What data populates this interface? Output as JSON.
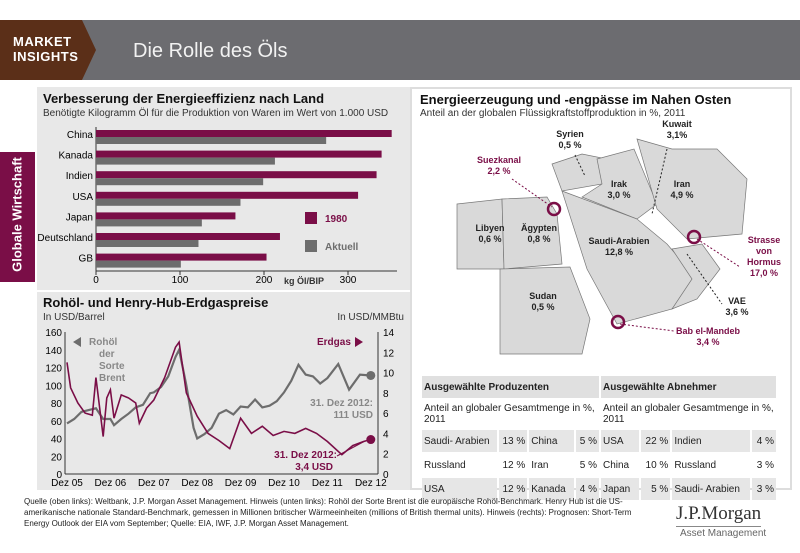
{
  "header": {
    "tag_line1": "MARKET",
    "tag_line2": "INSIGHTS",
    "title": "Die Rolle des Öls"
  },
  "sidebar_tab": "Globale Wirtschaft",
  "colors": {
    "maroon": "#7a0e47",
    "gray": "#6d6d6d",
    "header": "#6c6c70",
    "brown": "#5b2f18"
  },
  "chart_data": [
    {
      "type": "bar",
      "title": "Verbesserung der Energieeffizienz nach Land",
      "subtitle": "Benötigte Kilogramm Öl für die Produktion von Waren im Wert von 1.000 USD",
      "categories": [
        "China",
        "Kanada",
        "Indien",
        "USA",
        "Japan",
        "Deutschland",
        "GB"
      ],
      "series": [
        {
          "name": "1980",
          "color": "#7a0e47",
          "values": [
            352,
            340,
            334,
            312,
            166,
            219,
            203
          ]
        },
        {
          "name": "Aktuell",
          "color": "#6d6d6d",
          "values": [
            274,
            213,
            199,
            172,
            126,
            122,
            101
          ]
        }
      ],
      "xlabel": "kg Öl/BIP",
      "xlim": [
        0,
        350
      ],
      "xticks": [
        "0",
        "100",
        "200",
        "300"
      ],
      "legend": "right"
    },
    {
      "type": "line",
      "title": "Rohöl- und Henry-Hub-Erdgaspreise",
      "ylabel_left": "In USD/Barrel",
      "ylabel_right": "In USD/MMBtu",
      "ylim_left": [
        0,
        160
      ],
      "ylim_right": [
        0,
        14
      ],
      "yticks_left": [
        "0",
        "20",
        "40",
        "60",
        "80",
        "100",
        "120",
        "140",
        "160"
      ],
      "yticks_right": [
        "0",
        "2",
        "4",
        "6",
        "8",
        "10",
        "12",
        "14"
      ],
      "xticks": [
        "Dez 05",
        "Dez 06",
        "Dez 07",
        "Dez 08",
        "Dez 09",
        "Dez 10",
        "Dez 11",
        "Dez 12"
      ],
      "series": [
        {
          "name": "Rohöl der Sorte Brent",
          "axis": "left",
          "color": "#6d6d6d",
          "x": [
            "Dez 05",
            "Feb 06",
            "Apr 06",
            "Jun 06",
            "Aug 06",
            "Okt 06",
            "Dez 06",
            "Jan 07",
            "Mär 07",
            "Mai 07",
            "Jul 07",
            "Sep 07",
            "Nov 07",
            "Dez 07",
            "Feb 08",
            "Apr 08",
            "Jun 08",
            "Jul 08",
            "Sep 08",
            "Nov 08",
            "Dez 08",
            "Feb 09",
            "Apr 09",
            "Jun 09",
            "Aug 09",
            "Okt 09",
            "Dez 09",
            "Feb 10",
            "Apr 10",
            "Jun 10",
            "Aug 10",
            "Okt 10",
            "Dez 10",
            "Feb 11",
            "Apr 11",
            "Jun 11",
            "Aug 11",
            "Okt 11",
            "Dez 11",
            "Mär 12",
            "Jun 12",
            "Sep 12",
            "Dez 12"
          ],
          "values": [
            57,
            62,
            70,
            72,
            74,
            62,
            62,
            55,
            62,
            68,
            75,
            78,
            91,
            92,
            98,
            110,
            132,
            140,
            100,
            52,
            40,
            45,
            52,
            68,
            72,
            67,
            76,
            75,
            84,
            75,
            77,
            82,
            92,
            105,
            123,
            112,
            110,
            102,
            108,
            124,
            95,
            112,
            111
          ]
        },
        {
          "name": "Erdgas",
          "axis": "right",
          "color": "#7a0e47",
          "x": [
            "Dez 05",
            "Jan 06",
            "Mär 06",
            "Mai 06",
            "Jul 06",
            "Aug 06",
            "Okt 06",
            "Nov 06",
            "Dez 06",
            "Jan 07",
            "Mär 07",
            "Mai 07",
            "Jul 07",
            "Aug 07",
            "Okt 07",
            "Dez 07",
            "Mär 08",
            "Jun 08",
            "Jul 08",
            "Sep 08",
            "Dez 08",
            "Mär 09",
            "Jun 09",
            "Sep 09",
            "Dez 09",
            "Mär 10",
            "Jun 10",
            "Sep 10",
            "Dez 10",
            "Mär 11",
            "Jun 11",
            "Sep 11",
            "Dez 11",
            "Apr 12",
            "Jul 12",
            "Okt 12",
            "Dez 12"
          ],
          "values": [
            11,
            8.5,
            7,
            6,
            5.8,
            9.5,
            3.7,
            7.5,
            8.3,
            5.5,
            7.8,
            7.5,
            7,
            5,
            6.5,
            7.3,
            9.5,
            12.5,
            13,
            8,
            5.7,
            4,
            3.3,
            2.5,
            5.5,
            4,
            4.7,
            3.8,
            4.2,
            4,
            4.5,
            4,
            3.2,
            1.9,
            2.8,
            3.2,
            3.4
          ]
        }
      ],
      "annotations": {
        "brent_label": [
          "Rohöl",
          "der",
          "Sorte",
          "Brent"
        ],
        "gas_label": "Erdgas",
        "brent_end": [
          "31. Dez 2012:",
          "111 USD"
        ],
        "gas_end": [
          "31. Dez 2012:",
          "3,4 USD"
        ]
      }
    }
  ],
  "map": {
    "title": "Energieerzeugung und -engpässe im Nahen Osten",
    "subtitle": "Anteil an der globalen Flüssigkraftstoffproduktion in %, 2011",
    "countries": [
      {
        "name": "Syrien",
        "value": "0,5 %"
      },
      {
        "name": "Kuwait",
        "value": "3,1%"
      },
      {
        "name": "Irak",
        "value": "3,0 %"
      },
      {
        "name": "Iran",
        "value": "4,9 %"
      },
      {
        "name": "Libyen",
        "value": "0,6 %"
      },
      {
        "name": "Ägypten",
        "value": "0,8 %"
      },
      {
        "name": "Saudi-Arabien",
        "value": "12,8 %"
      },
      {
        "name": "Sudan",
        "value": "0,5 %"
      },
      {
        "name": "VAE",
        "value": "3,6 %"
      }
    ],
    "chokepoints": [
      {
        "name": "Suezkanal",
        "value": "2,2 %"
      },
      {
        "name": "Strasse von Hormus",
        "value": "17,0 %"
      },
      {
        "name": "Bab el-Mandeb",
        "value": "3,4 %"
      }
    ]
  },
  "tables": {
    "producers": {
      "header": "Ausgewählte Produzenten",
      "sub": "Anteil an globaler Gesamtmenge in %, 2011",
      "rows": [
        [
          "Saudi- Arabien",
          "13 %",
          "China",
          "5 %"
        ],
        [
          "Russland",
          "12 %",
          "Iran",
          "5 %"
        ],
        [
          "USA",
          "12 %",
          "Kanada",
          "4 %"
        ]
      ]
    },
    "consumers": {
      "header": "Ausgewählte Abnehmer",
      "sub": "Anteil an globaler Gesamtmenge in %, 2011",
      "rows": [
        [
          "USA",
          "22 %",
          "Indien",
          "4 %"
        ],
        [
          "China",
          "10 %",
          "Russland",
          "3 %"
        ],
        [
          "Japan",
          "5 %",
          "Saudi- Arabien",
          "3 %"
        ]
      ]
    }
  },
  "footer": "Quelle (oben links): Weltbank, J.P. Morgan Asset Management. Hinweis (unten links): Rohöl der Sorte Brent ist die europäische Rohöl-Benchmark. Henry Hub ist die US-amerikanische nationale Standard-Benchmark, gemessen in Millionen britischer Wärmeeinheiten (millions of British thermal units). Hinweis (rechts): Prognosen: Short-Term Energy Outlook der EIA vom September; Quelle: EIA, IWF, J.P. Morgan Asset Management.",
  "logo": {
    "name": "J.P.Morgan",
    "sub": "Asset Management"
  }
}
